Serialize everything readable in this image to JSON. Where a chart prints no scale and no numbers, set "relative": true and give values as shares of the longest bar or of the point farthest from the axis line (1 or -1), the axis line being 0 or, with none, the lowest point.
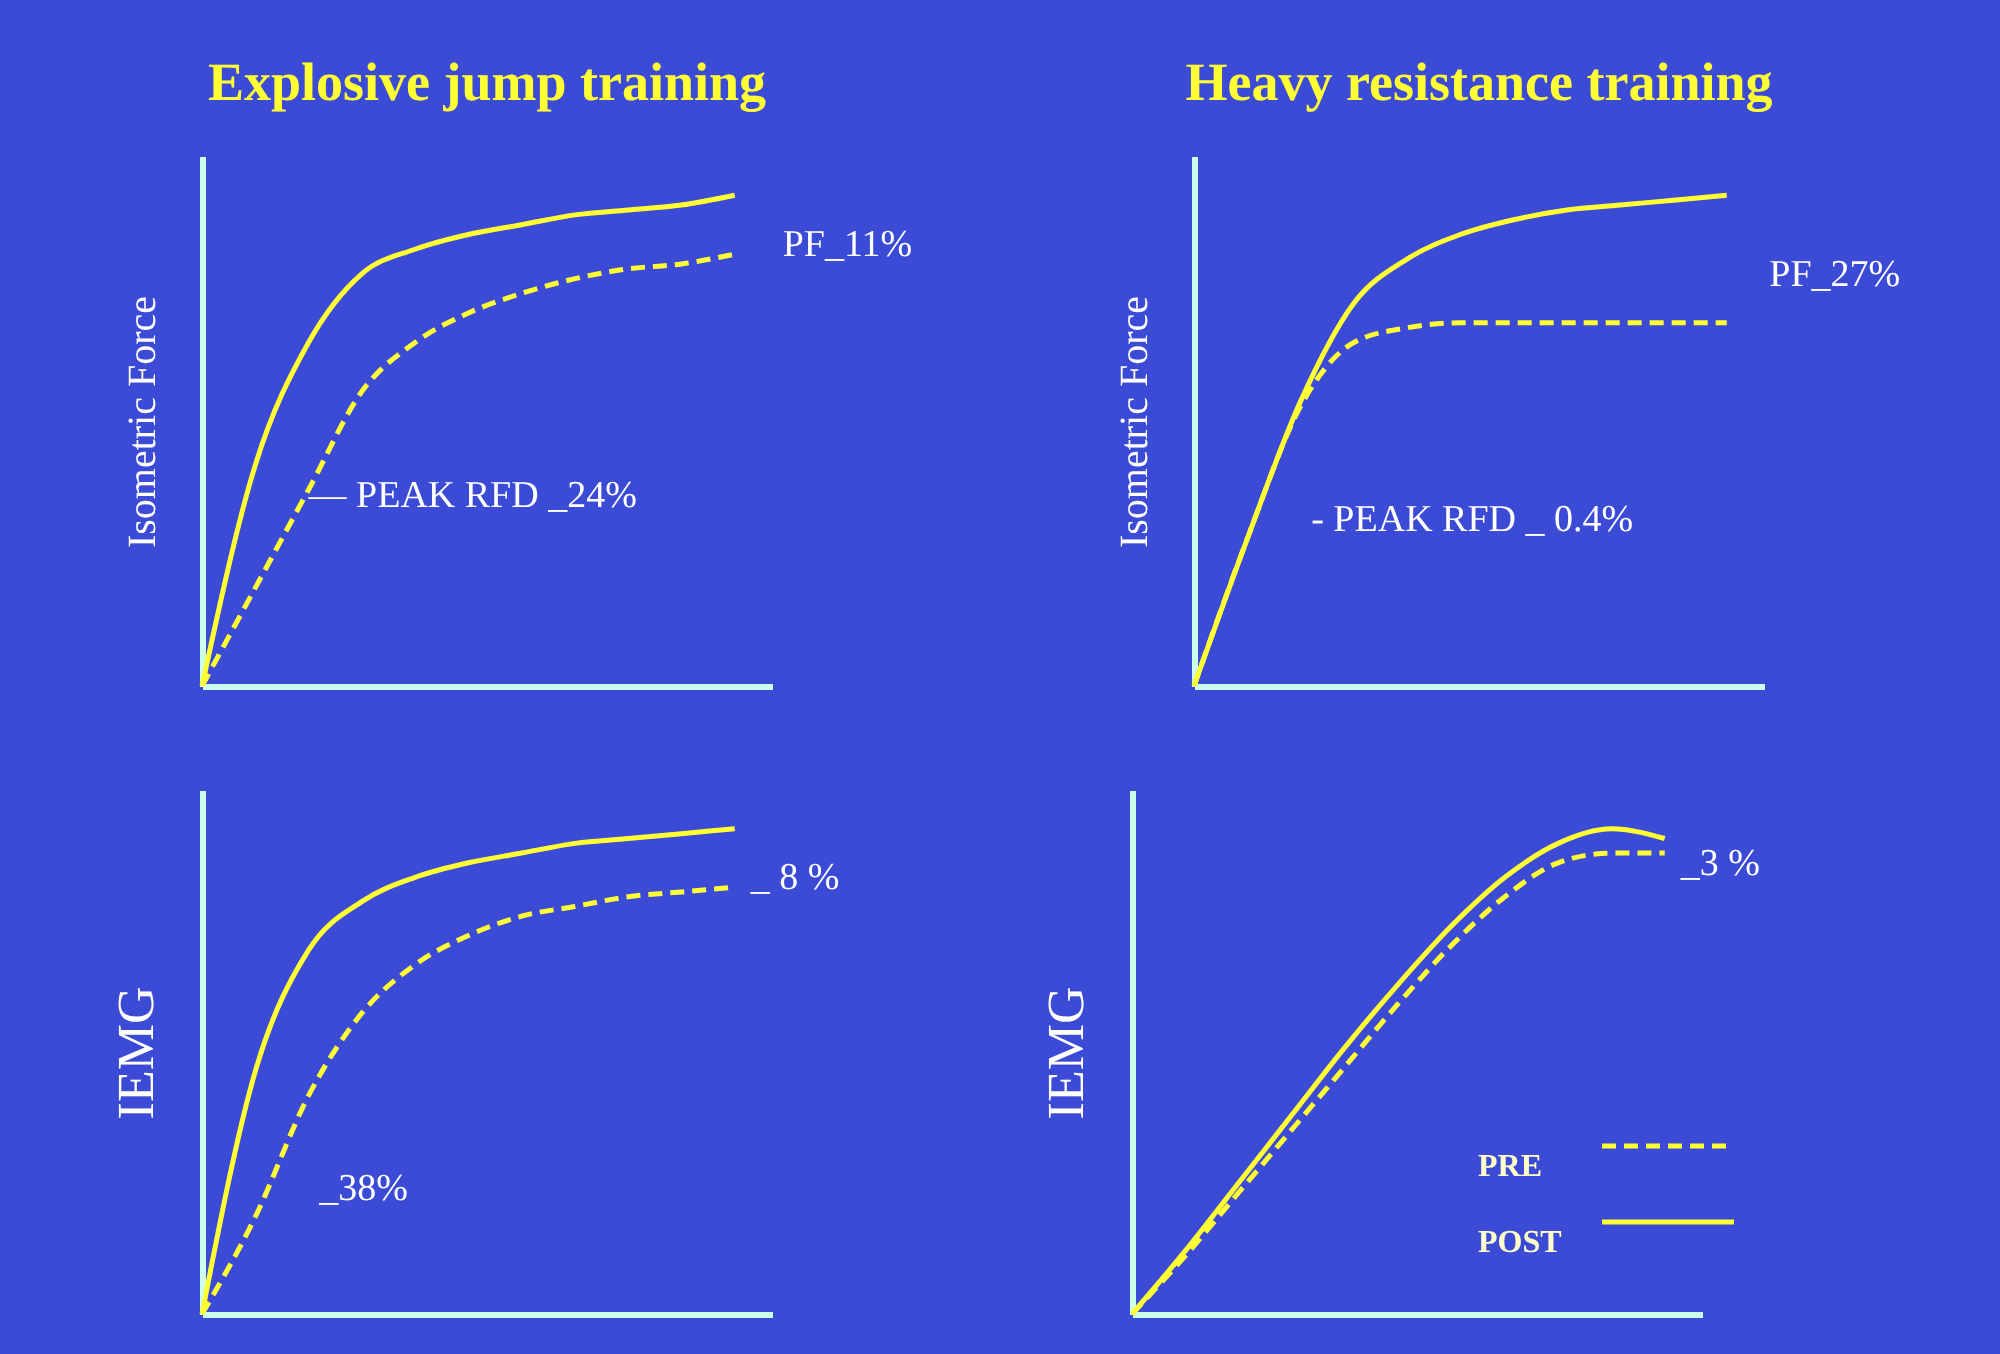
{
  "chart_data": [
    {
      "type": "line",
      "relative": true,
      "title": "Explosive jump training",
      "ylabel": "Isometric Force",
      "categories": [
        null,
        null,
        null,
        null,
        null,
        null,
        null,
        null,
        null,
        null,
        null
      ],
      "series": [
        {
          "color": "#ffff33",
          "line_style": "solid",
          "values": [
            0,
            0.45,
            0.7,
            0.84,
            0.89,
            0.92,
            0.94,
            0.96,
            0.97,
            0.98,
            1
          ]
        },
        {
          "color": "#ffff33",
          "line_style": "dashed",
          "values": [
            0,
            0.2,
            0.4,
            0.6,
            0.7,
            0.76,
            0.8,
            0.83,
            0.85,
            0.86,
            0.88
          ]
        }
      ],
      "annotations": [
        "PF_11%",
        "— PEAK RFD _24%"
      ]
    },
    {
      "type": "line",
      "relative": true,
      "title": "Heavy resistance training",
      "ylabel": "Isometric Force",
      "categories": [
        null,
        null,
        null,
        null,
        null,
        null,
        null,
        null,
        null,
        null,
        null
      ],
      "series": [
        {
          "color": "#ffff33",
          "line_style": "solid",
          "values": [
            0,
            0.3,
            0.58,
            0.78,
            0.87,
            0.92,
            0.95,
            0.97,
            0.98,
            0.99,
            1
          ]
        },
        {
          "color": "#ffff33",
          "line_style": "dashed",
          "values": [
            0,
            0.3,
            0.57,
            0.7,
            0.73,
            0.74,
            0.74,
            0.74,
            0.74,
            0.74,
            0.74
          ]
        }
      ],
      "annotations": [
        "PF_27%",
        "- PEAK RFD _ 0.4%"
      ]
    },
    {
      "type": "line",
      "relative": true,
      "ylabel": "IEMG",
      "categories": [
        null,
        null,
        null,
        null,
        null,
        null,
        null,
        null,
        null,
        null,
        null
      ],
      "series": [
        {
          "color": "#ffff33",
          "line_style": "solid",
          "values": [
            0,
            0.5,
            0.75,
            0.85,
            0.9,
            0.93,
            0.95,
            0.97,
            0.98,
            0.99,
            1
          ]
        },
        {
          "color": "#ffff33",
          "line_style": "dashed",
          "values": [
            0,
            0.2,
            0.45,
            0.62,
            0.72,
            0.78,
            0.82,
            0.84,
            0.86,
            0.87,
            0.88
          ]
        }
      ],
      "annotations": [
        "_ 8 %",
        "_38%"
      ]
    },
    {
      "type": "line",
      "relative": true,
      "ylabel": "IEMG",
      "legend": "bottom right",
      "categories": [
        null,
        null,
        null,
        null,
        null,
        null,
        null,
        null,
        null,
        null,
        null
      ],
      "series": [
        {
          "name": "PRE",
          "color": "#ffff33",
          "line_style": "dashed",
          "values": [
            0,
            0.12,
            0.25,
            0.38,
            0.51,
            0.64,
            0.76,
            0.86,
            0.93,
            0.95,
            0.95
          ]
        },
        {
          "name": "POST",
          "color": "#ffff33",
          "line_style": "solid",
          "values": [
            0,
            0.13,
            0.27,
            0.41,
            0.55,
            0.68,
            0.8,
            0.9,
            0.97,
            1,
            0.98
          ]
        }
      ],
      "annotations": [
        "_3 %"
      ]
    }
  ]
}
